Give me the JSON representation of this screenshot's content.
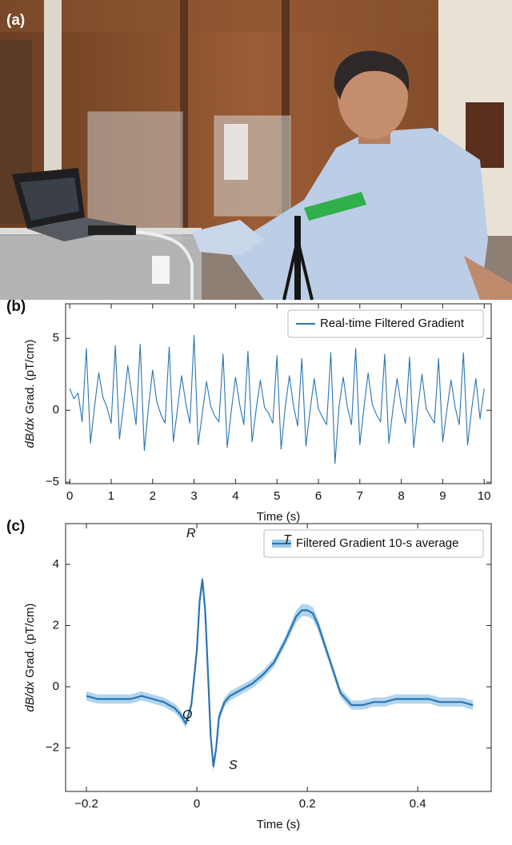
{
  "photo_panel": {
    "label": "(a)"
  },
  "chart_data": [
    {
      "type": "line",
      "panel_label": "(b)",
      "xlabel": "Time (s)",
      "ylabel_italic": "dB/dx",
      "ylabel": " Grad. (pT/cm)",
      "xlim": [
        -0.1,
        10.17
      ],
      "ylim": [
        -5.1,
        7.4
      ],
      "xticks": [
        0,
        1,
        2,
        3,
        4,
        5,
        6,
        7,
        8,
        9,
        10
      ],
      "yticks": [
        {
          "value": -5,
          "label": "−5"
        },
        0,
        5
      ],
      "legend": "upper right",
      "x": [
        0,
        0.1,
        0.2,
        0.3,
        0.4,
        0.5,
        0.6,
        0.7,
        0.8,
        0.9,
        1,
        1.1,
        1.2,
        1.3,
        1.4,
        1.5,
        1.6,
        1.7,
        1.8,
        1.9,
        2,
        2.1,
        2.2,
        2.3,
        2.4,
        2.5,
        2.6,
        2.7,
        2.8,
        2.9,
        3,
        3.1,
        3.2,
        3.3,
        3.4,
        3.5,
        3.6,
        3.7,
        3.8,
        3.9,
        4,
        4.1,
        4.2,
        4.3,
        4.4,
        4.5,
        4.6,
        4.7,
        4.8,
        4.9,
        5,
        5.1,
        5.2,
        5.3,
        5.4,
        5.5,
        5.6,
        5.7,
        5.8,
        5.9,
        6,
        6.1,
        6.2,
        6.3,
        6.4,
        6.5,
        6.6,
        6.7,
        6.8,
        6.9,
        7,
        7.1,
        7.2,
        7.3,
        7.4,
        7.5,
        7.6,
        7.7,
        7.8,
        7.9,
        8,
        8.1,
        8.2,
        8.3,
        8.4,
        8.5,
        8.6,
        8.7,
        8.8,
        8.9,
        9,
        9.1,
        9.2,
        9.3,
        9.4,
        9.5,
        9.6,
        9.7,
        9.8,
        9.9,
        10
      ],
      "series": [
        {
          "name": "Real-time Filtered Gradient",
          "color": "#2b74b2",
          "values": [
            1.5,
            0.8,
            1.2,
            -0.8,
            4.3,
            -2.3,
            0.3,
            2.6,
            0.9,
            0.2,
            -0.9,
            4.5,
            -2.0,
            0.4,
            3.1,
            1.0,
            -1.0,
            4.6,
            -2.8,
            0.2,
            2.8,
            0.6,
            -0.3,
            -0.9,
            4.4,
            -2.2,
            0.1,
            2.4,
            0.5,
            -0.9,
            5.2,
            -2.4,
            -0.2,
            2.0,
            0.3,
            -0.4,
            -0.8,
            3.9,
            -2.6,
            0.0,
            2.3,
            0.4,
            -1.0,
            4.1,
            -2.2,
            0.1,
            2.1,
            0.2,
            -0.2,
            -0.9,
            3.8,
            -2.7,
            0.2,
            2.4,
            0.3,
            -1.1,
            3.6,
            -2.5,
            0.0,
            2.2,
            0.1,
            -0.5,
            -1.0,
            4.0,
            -3.7,
            0.3,
            2.3,
            0.2,
            -1.0,
            4.3,
            -2.4,
            0.2,
            2.6,
            0.4,
            -0.3,
            -0.8,
            3.9,
            -2.3,
            0.1,
            2.2,
            0.3,
            -0.9,
            3.7,
            -2.6,
            0.2,
            2.5,
            0.1,
            -0.4,
            -0.9,
            3.6,
            -2.2,
            0.0,
            2.1,
            0.2,
            -1.0,
            4.0,
            -2.4,
            0.1,
            2.2,
            -0.6,
            1.5
          ]
        }
      ]
    },
    {
      "type": "band_line",
      "panel_label": "(c)",
      "xlabel": "Time (s)",
      "ylabel_italic": "dB/dx",
      "ylabel": " Grad. (pT/cm)",
      "xlim": [
        -0.2377,
        0.533
      ],
      "ylim": [
        -3.42,
        5.33
      ],
      "xticks": [
        {
          "value": -0.2,
          "label": "−0.2"
        },
        0,
        0.2,
        0.4
      ],
      "yticks": [
        {
          "value": -2,
          "label": "−2"
        },
        0,
        2,
        4
      ],
      "legend": "upper right",
      "annotations": [
        "R",
        "Q",
        "S",
        "T"
      ],
      "x": [
        -0.2,
        -0.18,
        -0.16,
        -0.14,
        -0.12,
        -0.1,
        -0.08,
        -0.06,
        -0.04,
        -0.03,
        -0.02,
        -0.01,
        0,
        0.005,
        0.01,
        0.015,
        0.02,
        0.025,
        0.03,
        0.035,
        0.04,
        0.05,
        0.06,
        0.08,
        0.1,
        0.12,
        0.14,
        0.16,
        0.18,
        0.19,
        0.2,
        0.21,
        0.22,
        0.24,
        0.26,
        0.28,
        0.3,
        0.32,
        0.34,
        0.36,
        0.38,
        0.4,
        0.42,
        0.44,
        0.46,
        0.48,
        0.5
      ],
      "series": [
        {
          "name": "Filtered Gradient 10-s average",
          "color": "#2b74b2",
          "band_color": "#9ecbe8",
          "values": [
            -0.3,
            -0.4,
            -0.4,
            -0.4,
            -0.4,
            -0.3,
            -0.4,
            -0.5,
            -0.7,
            -0.9,
            -1.2,
            -0.6,
            1.2,
            2.8,
            3.5,
            2.5,
            0.5,
            -1.6,
            -2.6,
            -2.0,
            -1.0,
            -0.5,
            -0.3,
            -0.1,
            0.1,
            0.4,
            0.8,
            1.5,
            2.3,
            2.5,
            2.5,
            2.4,
            2.0,
            0.9,
            -0.2,
            -0.6,
            -0.6,
            -0.5,
            -0.5,
            -0.4,
            -0.4,
            -0.4,
            -0.4,
            -0.5,
            -0.5,
            -0.5,
            -0.6
          ],
          "errors": [
            0.15,
            0.15,
            0.15,
            0.15,
            0.15,
            0.15,
            0.15,
            0.15,
            0.15,
            0.15,
            0.15,
            0.15,
            0.2,
            0.2,
            0.2,
            0.2,
            0.2,
            0.2,
            0.2,
            0.2,
            0.15,
            0.15,
            0.15,
            0.15,
            0.15,
            0.15,
            0.15,
            0.15,
            0.2,
            0.2,
            0.2,
            0.2,
            0.2,
            0.15,
            0.15,
            0.15,
            0.15,
            0.15,
            0.15,
            0.15,
            0.15,
            0.15,
            0.15,
            0.15,
            0.15,
            0.15,
            0.15
          ]
        }
      ]
    }
  ]
}
